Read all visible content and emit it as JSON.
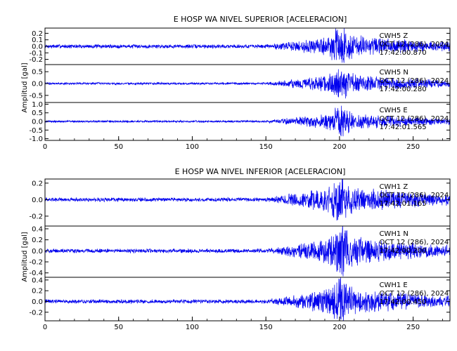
{
  "chart_data": [
    {
      "type": "line",
      "title": "E HOSP WA NIVEL SUPERIOR [ACELERACION]",
      "ylabel": "Amplitud [gal]",
      "xlim": [
        0,
        275
      ],
      "x_ticks": [
        "0",
        "50",
        "100",
        "150",
        "200",
        "250"
      ],
      "series": [
        {
          "name": "CWH5 Z",
          "date": "OCT 12 (286), 2024",
          "time": "17:42:00.870",
          "ylim": [
            -0.28,
            0.28
          ],
          "y_ticks": [
            "0.2",
            "0.1",
            "0.0",
            "-0.1",
            "-0.2"
          ],
          "waveform": {
            "noise": 0.025,
            "peak": 0.24,
            "onset": 150,
            "peak_time": 200
          }
        },
        {
          "name": "CWH5 N",
          "date": "OCT 12 (286), 2024",
          "time": "17:42:00.280",
          "ylim": [
            -0.8,
            0.8
          ],
          "y_ticks": [
            "0.5",
            "0.0",
            "-0.5"
          ],
          "waveform": {
            "noise": 0.04,
            "peak": 0.6,
            "onset": 150,
            "peak_time": 200
          }
        },
        {
          "name": "CWH5 E",
          "date": "OCT 12 (286), 2024",
          "time": "17:42:01.565",
          "ylim": [
            -1.1,
            1.1
          ],
          "y_ticks": [
            "1.0",
            "0.5",
            "0.0",
            "-0.5",
            "-1.0"
          ],
          "waveform": {
            "noise": 0.05,
            "peak": 0.75,
            "onset": 150,
            "peak_time": 200
          }
        }
      ]
    },
    {
      "type": "line",
      "title": "E HOSP WA NIVEL INFERIOR [ACELERACION]",
      "ylabel": "Amplitud [gal]",
      "xlim": [
        0,
        275
      ],
      "x_ticks": [
        "0",
        "50",
        "100",
        "150",
        "200",
        "250"
      ],
      "series": [
        {
          "name": "CWH1 Z",
          "date": "OCT 12 (286), 2024",
          "time": "17:42:01.165",
          "ylim": [
            -0.32,
            0.25
          ],
          "y_ticks": [
            "0.2",
            "0.0",
            "-0.2"
          ],
          "waveform": {
            "noise": 0.02,
            "peak": 0.24,
            "onset": 150,
            "peak_time": 200
          }
        },
        {
          "name": "CWH1 N",
          "date": "OCT 12 (286), 2024",
          "time": "17:42:00.200",
          "ylim": [
            -0.48,
            0.45
          ],
          "y_ticks": [
            "0.4",
            "0.2",
            "0.0",
            "-0.2",
            "-0.4"
          ],
          "waveform": {
            "noise": 0.03,
            "peak": 0.38,
            "onset": 150,
            "peak_time": 200
          }
        },
        {
          "name": "CWH1 E",
          "date": "OCT 12 (286), 2024",
          "time": "17:42:00.450",
          "ylim": [
            -0.36,
            0.45
          ],
          "y_ticks": [
            "0.4",
            "0.2",
            "0.0",
            "-0.2"
          ],
          "waveform": {
            "noise": 0.03,
            "peak": 0.38,
            "onset": 150,
            "peak_time": 200
          }
        }
      ]
    }
  ],
  "colors": {
    "trace": "#0000ee",
    "axis": "#000000",
    "background": "#ffffff"
  }
}
